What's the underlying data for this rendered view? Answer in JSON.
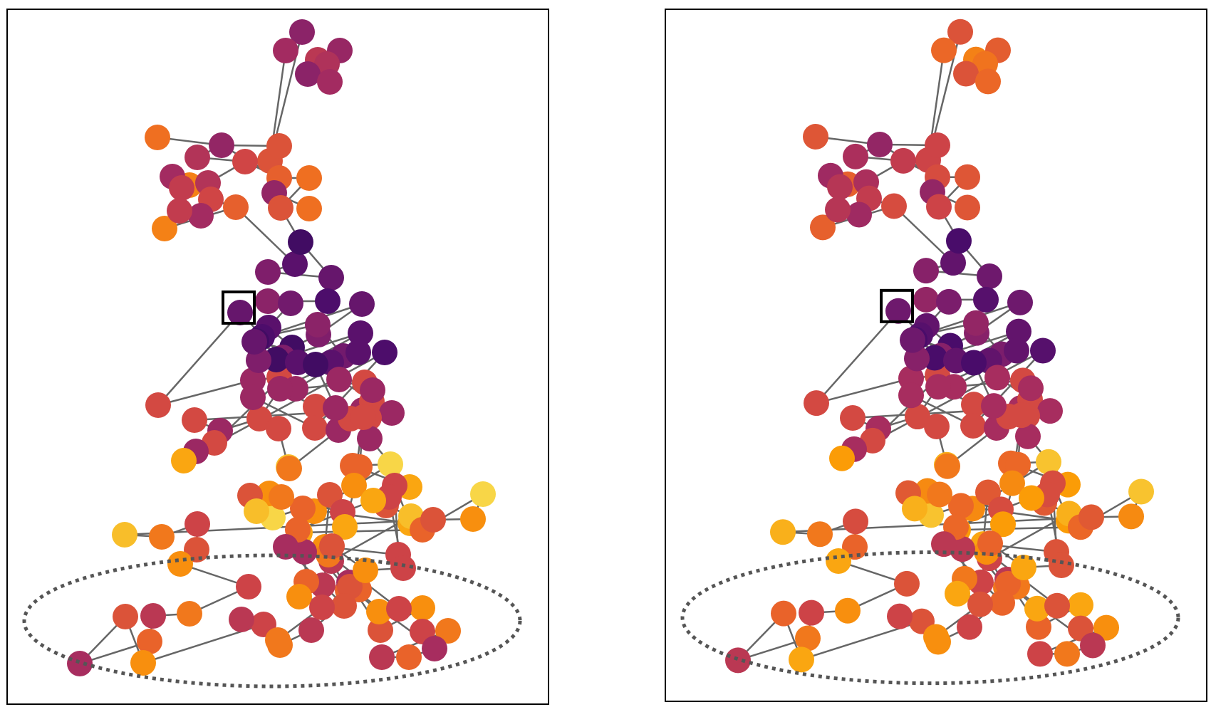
{
  "figure": {
    "panel_count": 2,
    "colormap": [
      "#000004",
      "#1b0c41",
      "#4a0c6b",
      "#781c6d",
      "#a52c60",
      "#cf4446",
      "#ed6925",
      "#fb9b06",
      "#f7d13d",
      "#fcffa4"
    ],
    "colors": {
      "edge": "#666666",
      "frame": "#000000",
      "highlight_box": "#000000",
      "ellipse": "#555555",
      "background": "#ffffff"
    },
    "markers": [
      "highlighted-node-box",
      "dashed-ellipse-region"
    ]
  }
}
